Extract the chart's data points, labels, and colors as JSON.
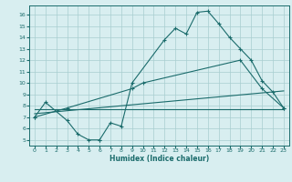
{
  "line1_x": [
    0,
    1,
    3,
    4,
    5,
    6,
    6,
    7,
    8,
    9,
    12,
    13,
    14,
    15,
    16,
    17,
    18,
    19,
    20,
    21,
    22,
    23
  ],
  "line1_y": [
    7.0,
    8.3,
    6.7,
    5.5,
    5.0,
    5.0,
    5.0,
    6.5,
    6.2,
    10.0,
    13.8,
    14.8,
    14.3,
    16.2,
    16.3,
    15.2,
    14.0,
    13.0,
    12.0,
    10.2,
    9.2,
    7.8
  ],
  "line2_x": [
    0,
    3,
    9,
    10,
    19,
    21,
    23
  ],
  "line2_y": [
    7.0,
    7.8,
    9.5,
    10.0,
    12.0,
    9.5,
    7.8
  ],
  "line3_x": [
    0,
    23
  ],
  "line3_y": [
    7.3,
    9.3
  ],
  "line4_x": [
    0,
    23
  ],
  "line4_y": [
    7.7,
    7.7
  ],
  "line_color": "#1a6b6b",
  "bg_color": "#d8eef0",
  "grid_color": "#a8cdd0",
  "xlabel": "Humidex (Indice chaleur)",
  "xlim": [
    -0.5,
    23.5
  ],
  "ylim": [
    4.5,
    16.8
  ],
  "xticks": [
    0,
    1,
    2,
    3,
    4,
    5,
    6,
    7,
    8,
    9,
    10,
    11,
    12,
    13,
    14,
    15,
    16,
    17,
    18,
    19,
    20,
    21,
    22,
    23
  ],
  "yticks": [
    5,
    6,
    7,
    8,
    9,
    10,
    11,
    12,
    13,
    14,
    15,
    16
  ]
}
